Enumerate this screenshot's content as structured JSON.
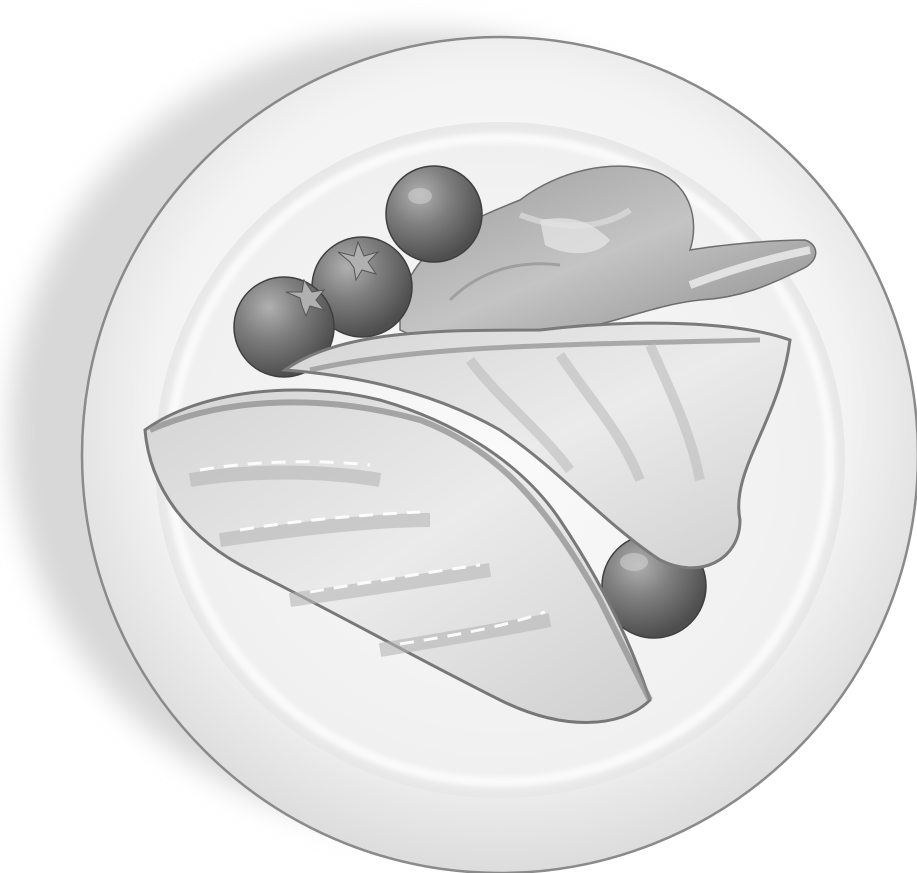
{
  "scene": {
    "subject": "plate-with-grilled-chicken-tomatoes-and-lettuce",
    "palette": {
      "background": "#ffffff",
      "plate_rim": "#e9e9e9",
      "plate_inner": "#f7f7f7",
      "plate_outline": "#8a8a8a",
      "shadow": "#d6d6d6",
      "chicken_light": "#e4e4e4",
      "chicken_mid": "#c9c9c9",
      "chicken_edge": "#7d7d7d",
      "tomato_light": "#9a9a9a",
      "tomato_dark": "#5a5a5a",
      "lettuce_light": "#b8b8b8",
      "lettuce_dark": "#7a7a7a"
    }
  }
}
